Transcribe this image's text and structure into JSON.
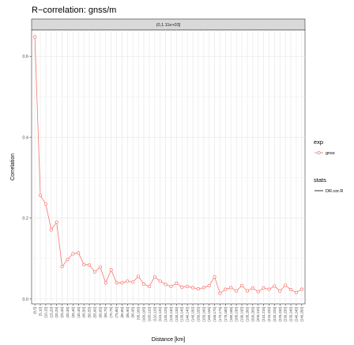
{
  "chart_data": {
    "type": "line",
    "title": "R−correlation: gnss/m",
    "xlabel": "Distance [km]",
    "ylabel": "Correlation",
    "facet_label": "(0,1.11e+03]",
    "categories": [
      "(0,5]",
      "(5,10]",
      "(10,15]",
      "(15,20]",
      "(20,25]",
      "(25,30]",
      "(30,35]",
      "(35,40]",
      "(40,45]",
      "(45,50]",
      "(50,55]",
      "(55,60]",
      "(60,65]",
      "(65,70]",
      "(70,75]",
      "(75,80]",
      "(80,85]",
      "(85,90]",
      "(90,95]",
      "(95,100]",
      "(100,105]",
      "(105,110]",
      "(110,115]",
      "(115,120]",
      "(120,125]",
      "(125,130]",
      "(130,135]",
      "(135,140]",
      "(140,145]",
      "(145,150]",
      "(150,155]",
      "(155,160]",
      "(160,165]",
      "(165,170]",
      "(170,175]",
      "(175,180]",
      "(180,185]",
      "(185,190]",
      "(190,195]",
      "(195,200]",
      "(200,205]",
      "(205,210]",
      "(210,215]",
      "(215,220]",
      "(220,225]",
      "(225,230]",
      "(230,235]",
      "(235,240]",
      "(240,245]",
      "(245,250]"
    ],
    "series": [
      {
        "name": "gnss",
        "color": "#F8766D",
        "values": [
          0.648,
          0.256,
          0.235,
          0.171,
          0.19,
          0.08,
          0.098,
          0.112,
          0.114,
          0.085,
          0.084,
          0.067,
          0.079,
          0.04,
          0.072,
          0.04,
          0.04,
          0.044,
          0.042,
          0.056,
          0.037,
          0.031,
          0.055,
          0.044,
          0.036,
          0.031,
          0.039,
          0.029,
          0.031,
          0.028,
          0.025,
          0.028,
          0.033,
          0.055,
          0.014,
          0.024,
          0.028,
          0.02,
          0.033,
          0.02,
          0.027,
          0.018,
          0.027,
          0.024,
          0.032,
          0.02,
          0.034,
          0.023,
          0.016,
          0.024
        ]
      }
    ],
    "ylim": [
      -0.012,
      0.665
    ],
    "yticks": [
      0.0,
      0.2,
      0.4,
      0.6
    ],
    "ytick_labels": [
      "0.0",
      "0.2",
      "0.4",
      "0.6"
    ],
    "grid": true,
    "legend": {
      "placement": "right",
      "groups": [
        {
          "title": "exp",
          "entries": [
            {
              "label": "gnss",
              "color": "#F8766D",
              "kind": "line-point"
            }
          ]
        },
        {
          "title": "stats",
          "entries": [
            {
              "label": "DR.cor.R",
              "color": "#000000",
              "kind": "line"
            }
          ]
        }
      ]
    }
  }
}
